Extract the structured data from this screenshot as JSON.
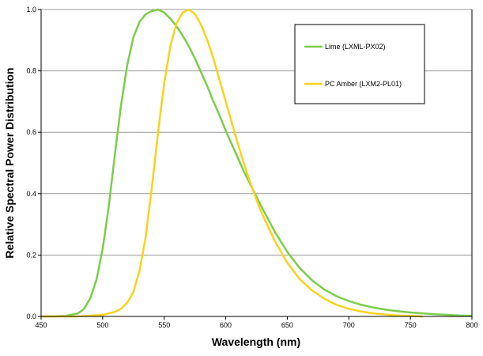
{
  "colors": {
    "lime": "#7ccd4a",
    "amber": "#f7d31c",
    "grid": "#9a9a9a",
    "axis": "#000000",
    "background": "#ffffff"
  },
  "chart_data": {
    "type": "line",
    "title": "",
    "xlabel": "Wavelength (nm)",
    "ylabel": "Relative Spectral Power Distribution",
    "xlim": [
      450,
      800
    ],
    "ylim": [
      0,
      1.0
    ],
    "xticks": [
      450,
      500,
      550,
      600,
      650,
      700,
      750,
      800
    ],
    "xtick_labels": [
      "450",
      "500",
      "550",
      "600",
      "650",
      "700",
      "750",
      "800"
    ],
    "yticks": [
      0,
      0.2,
      0.4,
      0.6,
      0.8,
      1.0
    ],
    "ytick_labels": [
      "0.0",
      "0.2",
      "0.4",
      "0.6",
      "0.8",
      "1.0"
    ],
    "grid": "horizontal",
    "legend_position": "top-right",
    "series": [
      {
        "name": "Lime (LXML-PX02)",
        "color": "#7ccd4a",
        "x": [
          450,
          460,
          470,
          480,
          485,
          490,
          495,
          500,
          505,
          510,
          515,
          520,
          525,
          530,
          535,
          540,
          545,
          550,
          555,
          560,
          565,
          570,
          575,
          580,
          585,
          590,
          595,
          600,
          605,
          610,
          615,
          620,
          625,
          630,
          640,
          650,
          660,
          670,
          680,
          690,
          700,
          710,
          720,
          730,
          740,
          750,
          760,
          770,
          780,
          790,
          800
        ],
        "y": [
          0.0,
          0.0,
          0.002,
          0.01,
          0.025,
          0.06,
          0.12,
          0.22,
          0.36,
          0.53,
          0.69,
          0.82,
          0.91,
          0.96,
          0.985,
          0.995,
          1.0,
          0.99,
          0.97,
          0.945,
          0.915,
          0.88,
          0.84,
          0.795,
          0.75,
          0.7,
          0.655,
          0.605,
          0.56,
          0.515,
          0.47,
          0.43,
          0.39,
          0.35,
          0.275,
          0.21,
          0.158,
          0.118,
          0.088,
          0.066,
          0.05,
          0.038,
          0.029,
          0.022,
          0.017,
          0.013,
          0.01,
          0.007,
          0.005,
          0.003,
          0.002
        ]
      },
      {
        "name": "PC Amber (LXM2-PL01)",
        "color": "#f7d31c",
        "x": [
          450,
          480,
          500,
          510,
          515,
          520,
          525,
          530,
          535,
          540,
          545,
          550,
          555,
          560,
          565,
          570,
          575,
          580,
          585,
          590,
          595,
          600,
          605,
          610,
          615,
          620,
          625,
          630,
          640,
          650,
          660,
          670,
          680,
          690,
          700,
          710,
          720,
          730,
          740,
          750,
          760
        ],
        "y": [
          0.0,
          0.0,
          0.005,
          0.015,
          0.025,
          0.045,
          0.08,
          0.15,
          0.26,
          0.42,
          0.6,
          0.76,
          0.88,
          0.955,
          0.99,
          1.0,
          0.985,
          0.95,
          0.9,
          0.84,
          0.77,
          0.7,
          0.63,
          0.56,
          0.495,
          0.435,
          0.38,
          0.33,
          0.245,
          0.175,
          0.122,
          0.085,
          0.058,
          0.038,
          0.025,
          0.016,
          0.01,
          0.006,
          0.003,
          0.002,
          0.0
        ]
      }
    ]
  }
}
